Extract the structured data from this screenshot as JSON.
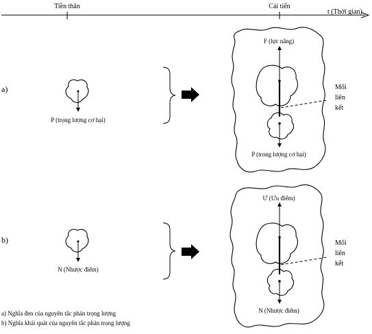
{
  "timeline": {
    "before_label": "Tiền thân",
    "after_label": "Cải tiến",
    "axis_label": "t (Thời gian)"
  },
  "row_a": {
    "marker": "a)",
    "left_label": "P (trọng lượng cơ hại)",
    "top_label": "F (lực nâng)",
    "bottom_label": "P (trọng lượng cơ hại)",
    "link_label": [
      "Mối",
      "liên",
      "kết"
    ]
  },
  "row_b": {
    "marker": "b)",
    "left_label": "N (Nhược điểm)",
    "top_label": "Ư (Ưu điểm)",
    "bottom_label": "N (Nhược điểm)",
    "link_label": [
      "Mối",
      "liên",
      "kết"
    ]
  },
  "captions": [
    "a) Nghĩa đen của nguyên tắc phản trọng lượng",
    "b) Nghĩa khái quát của nguyên tắc phản trọng lượng"
  ]
}
